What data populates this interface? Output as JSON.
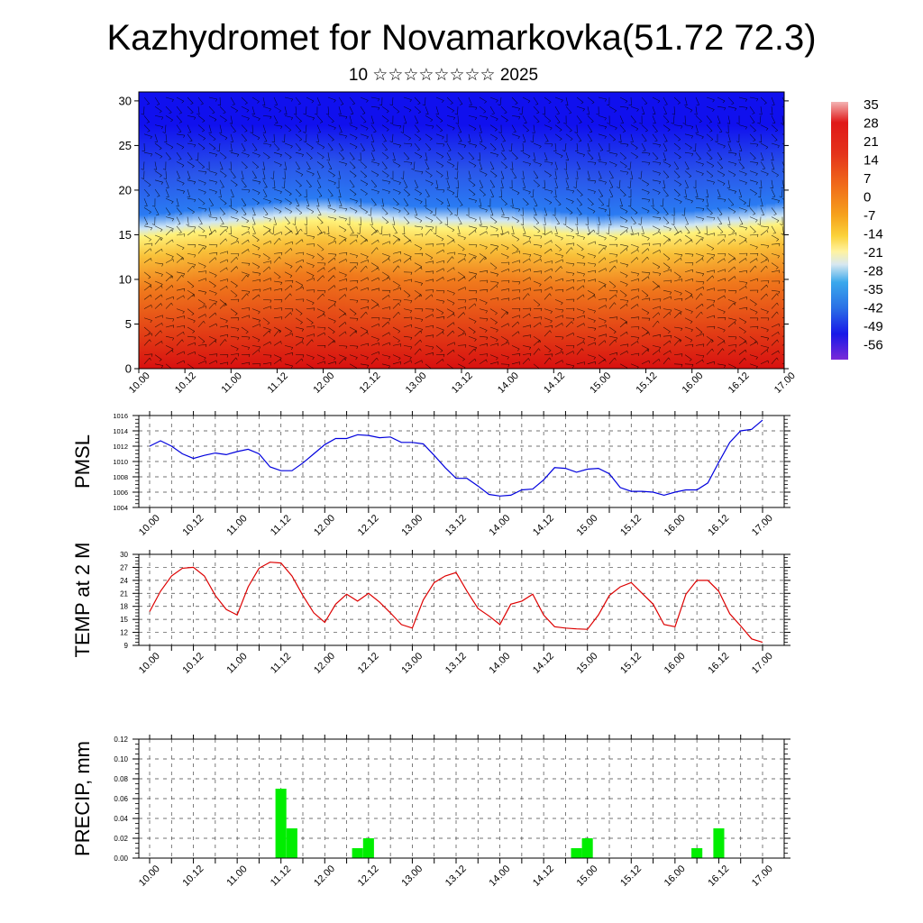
{
  "header": {
    "title": "Kazhydromet for Novamarkovka(51.72 72.3)",
    "subtitle": "10 ☆☆☆☆☆☆☆☆ 2025"
  },
  "chart_data": [
    {
      "type": "heatmap",
      "title": "Kazhydromet for Novamarkovka(51.72 72.3)",
      "subtitle": "10 ☆☆☆☆☆☆☆☆ 2025",
      "x_tick_labels": [
        "10.00",
        "10.12",
        "11.00",
        "11.12",
        "12.00",
        "12.12",
        "13.00",
        "13.12",
        "14.00",
        "14.12",
        "15.00",
        "15.12",
        "16.00",
        "16.12",
        "17.00"
      ],
      "y_ticks": [
        0,
        5,
        10,
        15,
        20,
        25,
        30
      ],
      "ylim": [
        0,
        31
      ],
      "colorbar_labels": [
        "35",
        "28",
        "21",
        "14",
        "7",
        "0",
        "-7",
        "-14",
        "-21",
        "-28",
        "-35",
        "-42",
        "-49",
        "-56"
      ],
      "colors": {
        "warm_low": "#d81010",
        "warm_mid": "#f07a1c",
        "yellow": "#fff27a",
        "cool": "#2a7bf2",
        "cold_top": "#1010ee"
      },
      "freezing_level_by_day": [
        15,
        16,
        17,
        16,
        16,
        15,
        15.5,
        16.5
      ],
      "overlay": "wind barbs"
    },
    {
      "type": "line",
      "ylabel": "PMSL",
      "ylim": [
        1004,
        1016
      ],
      "y_ticks": [
        "1004",
        "1006",
        "1008",
        "1010",
        "1012",
        "1014",
        "1016"
      ],
      "x_tick_labels": [
        "10.00",
        "10.12",
        "11.00",
        "11.12",
        "12.00",
        "12.12",
        "13.00",
        "13.12",
        "14.00",
        "14.12",
        "15.00",
        "15.12",
        "16.00",
        "16.12",
        "17.00"
      ],
      "grid": true,
      "line_color": "#0000dd",
      "values": [
        1012.0,
        1012.7,
        1012.0,
        1011.0,
        1010.4,
        1010.8,
        1011.1,
        1010.9,
        1011.3,
        1011.6,
        1011.0,
        1009.3,
        1008.8,
        1008.8,
        1009.8,
        1011.0,
        1012.2,
        1013.0,
        1013.0,
        1013.5,
        1013.4,
        1013.1,
        1013.2,
        1012.5,
        1012.5,
        1012.3,
        1010.8,
        1009.2,
        1007.8,
        1007.8,
        1006.8,
        1005.7,
        1005.5,
        1005.6,
        1006.3,
        1006.4,
        1007.6,
        1009.2,
        1009.1,
        1008.6,
        1009.0,
        1009.1,
        1008.4,
        1006.6,
        1006.1,
        1006.1,
        1006.0,
        1005.6,
        1006.0,
        1006.3,
        1006.3,
        1007.2,
        1009.9,
        1012.5,
        1014.0,
        1014.2,
        1015.4
      ]
    },
    {
      "type": "line",
      "ylabel": "TEMP at 2 M",
      "ylim": [
        9,
        30
      ],
      "y_ticks": [
        "9",
        "12",
        "15",
        "18",
        "21",
        "24",
        "27",
        "30"
      ],
      "x_tick_labels": [
        "10.00",
        "10.12",
        "11.00",
        "11.12",
        "12.00",
        "12.12",
        "13.00",
        "13.12",
        "14.00",
        "14.12",
        "15.00",
        "15.12",
        "16.00",
        "16.12",
        "17.00"
      ],
      "grid": true,
      "line_color": "#dd0000",
      "values": [
        16.8,
        21.5,
        25.0,
        26.8,
        27.0,
        25.0,
        20.5,
        17.3,
        16.0,
        22.5,
        26.8,
        28.2,
        28.0,
        25.0,
        20.5,
        16.5,
        14.3,
        18.5,
        20.8,
        19.2,
        21.0,
        19.0,
        16.5,
        13.8,
        13.0,
        19.5,
        23.5,
        25.0,
        25.8,
        21.5,
        17.5,
        15.8,
        13.8,
        18.5,
        19.2,
        20.8,
        16.0,
        13.3,
        13.0,
        12.8,
        12.7,
        16.0,
        20.5,
        22.5,
        23.5,
        21.0,
        18.5,
        13.8,
        13.3,
        20.8,
        24.0,
        24.0,
        21.5,
        16.3,
        13.5,
        10.5,
        9.7
      ]
    },
    {
      "type": "bar",
      "ylabel": "PRECIP, mm",
      "ylim": [
        0,
        0.12
      ],
      "y_ticks": [
        "0.00",
        "0.02",
        "0.04",
        "0.06",
        "0.08",
        "0.10",
        "0.12"
      ],
      "x_tick_labels": [
        "10.00",
        "10.12",
        "11.00",
        "11.12",
        "12.00",
        "12.12",
        "13.00",
        "13.12",
        "14.00",
        "14.12",
        "15.00",
        "15.12",
        "16.00",
        "16.12",
        "17.00"
      ],
      "grid": true,
      "bar_color": "#00ee00",
      "values": [
        0,
        0,
        0,
        0,
        0,
        0,
        0,
        0,
        0,
        0,
        0,
        0,
        0.07,
        0.03,
        0,
        0,
        0,
        0,
        0,
        0.01,
        0.02,
        0,
        0,
        0,
        0,
        0,
        0,
        0,
        0,
        0,
        0,
        0,
        0,
        0,
        0,
        0,
        0,
        0,
        0,
        0.01,
        0.02,
        0,
        0,
        0,
        0,
        0,
        0,
        0,
        0,
        0,
        0.01,
        0,
        0.03,
        0,
        0,
        0,
        0
      ]
    }
  ]
}
